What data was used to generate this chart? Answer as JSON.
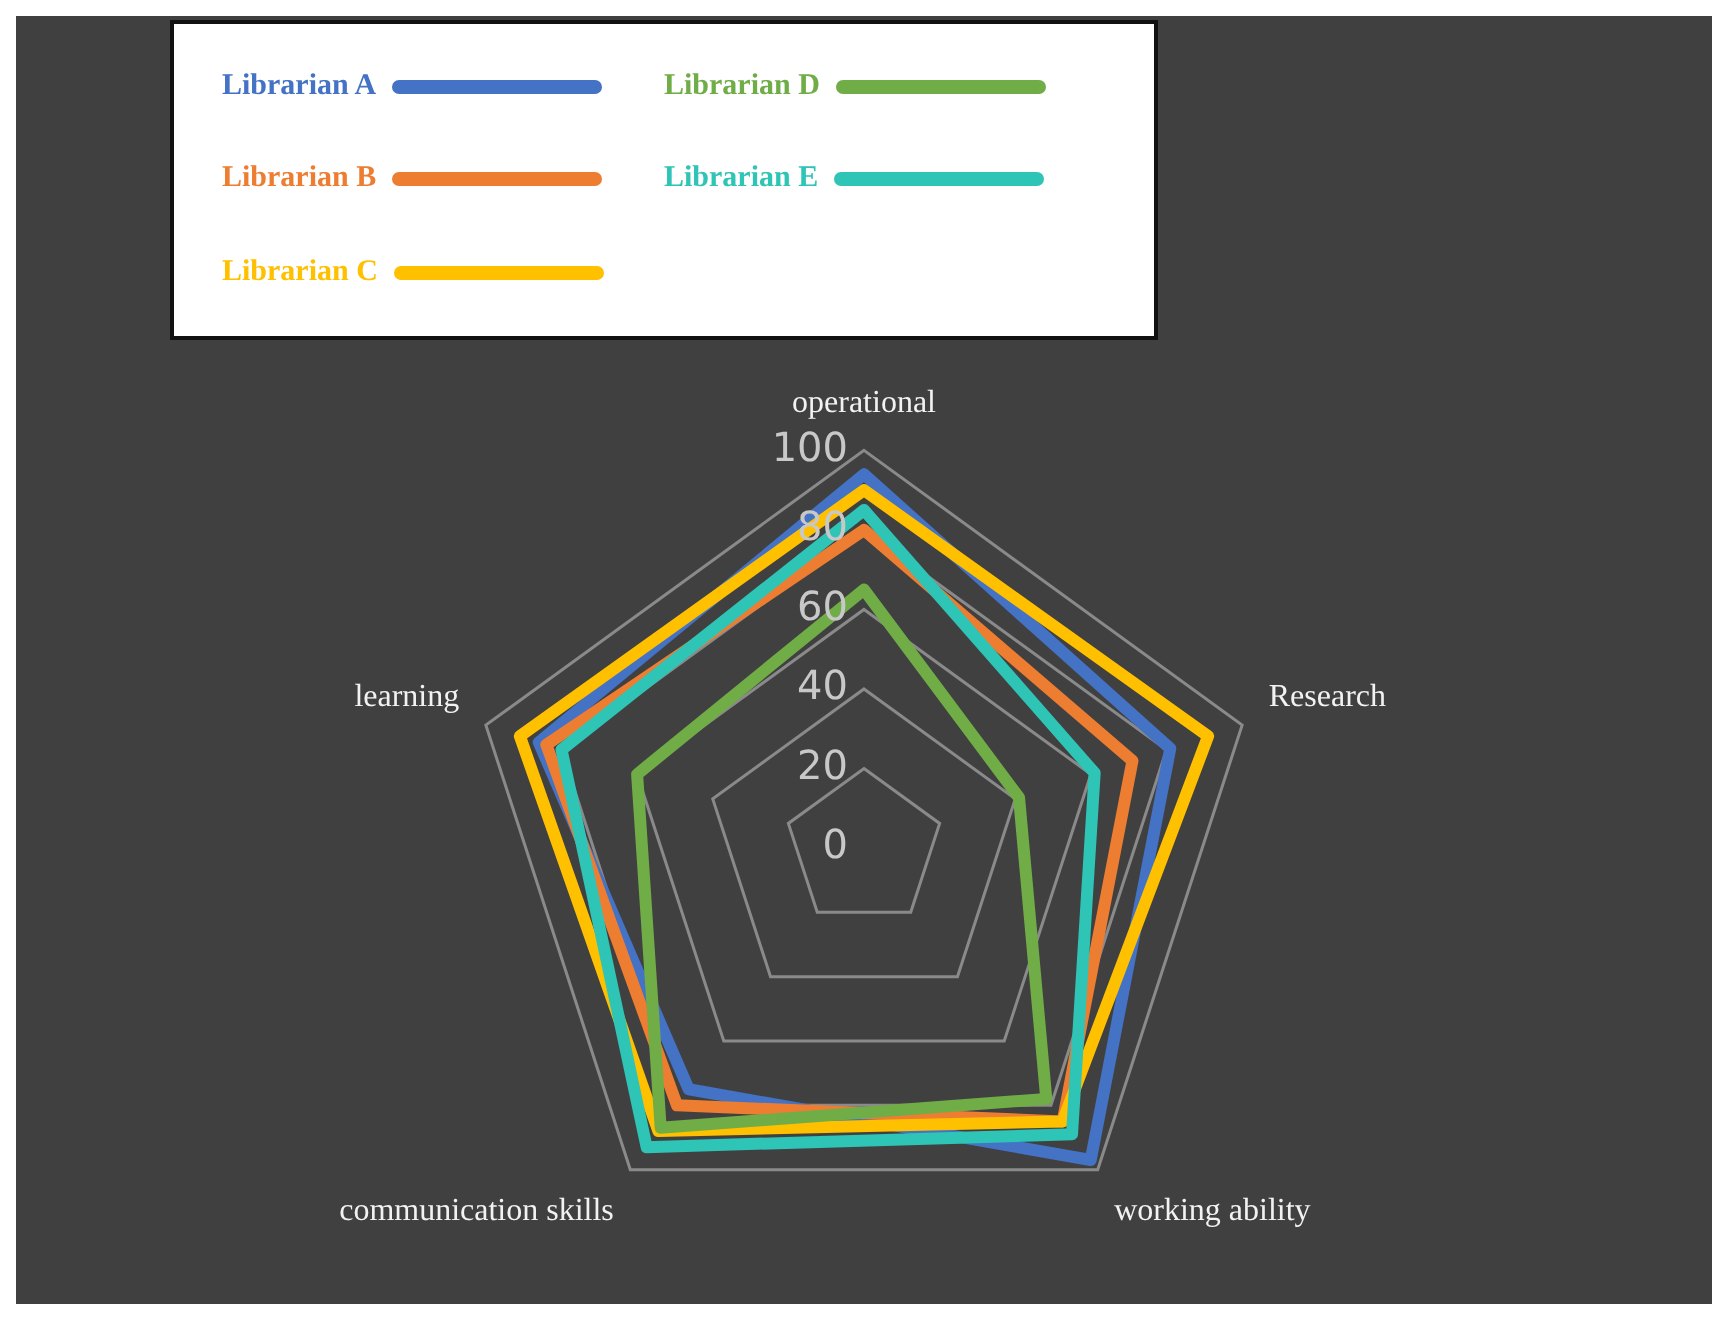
{
  "chart_data": {
    "type": "radar",
    "categories": [
      "operational",
      "Research",
      "working ability",
      "communication skills",
      "learning"
    ],
    "series": [
      {
        "name": "Librarian A",
        "color": "#4472c4",
        "values": [
          94,
          81,
          97,
          75,
          86
        ]
      },
      {
        "name": "Librarian B",
        "color": "#ed7d31",
        "values": [
          80,
          71,
          85,
          80,
          84
        ]
      },
      {
        "name": "Librarian C",
        "color": "#ffc000",
        "values": [
          90,
          91,
          85,
          88,
          91
        ]
      },
      {
        "name": "Librarian D",
        "color": "#70ad47",
        "values": [
          65,
          41,
          78,
          87,
          60
        ]
      },
      {
        "name": "Librarian E",
        "color": "#2ec4b6",
        "values": [
          85,
          61,
          89,
          93,
          80
        ]
      }
    ],
    "ylim": [
      0,
      100
    ],
    "yticks": [
      0,
      20,
      40,
      60,
      80,
      100
    ],
    "grid": true,
    "legend": "top left",
    "marker": "none",
    "line_style": "solid"
  }
}
